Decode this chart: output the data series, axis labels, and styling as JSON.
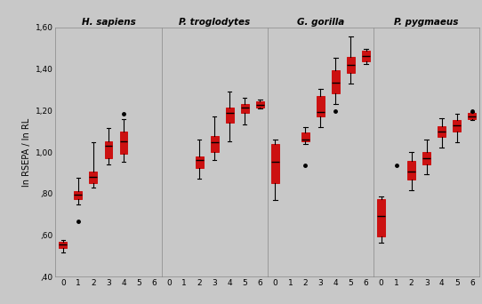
{
  "title_fontsize": 7.5,
  "ylabel": "ln RSEPA / ln RL",
  "ylabel_fontsize": 7,
  "bg_color": "#c8c8c8",
  "fig_bg_color": "#c8c8c8",
  "box_color": "#cc1111",
  "whisker_color": "#000000",
  "median_color": "#000000",
  "ylim": [
    0.4,
    1.6
  ],
  "yticks": [
    0.4,
    0.6,
    0.8,
    1.0,
    1.2,
    1.4,
    1.6
  ],
  "ytick_labels": [
    ",40",
    ",60",
    ",80",
    "1,00",
    "1,20",
    "1,40",
    "1,60"
  ],
  "species": [
    "H. sapiens",
    "P. troglodytes",
    "G. gorilla",
    "P. pygmaeus"
  ],
  "panels": {
    "H. sapiens": {
      "boxes": {
        "0": {
          "q1": 0.538,
          "median": 0.555,
          "q3": 0.568,
          "whislo": 0.515,
          "whishi": 0.578
        },
        "1": {
          "q1": 0.772,
          "median": 0.793,
          "q3": 0.812,
          "whislo": 0.748,
          "whishi": 0.875
        },
        "2": {
          "q1": 0.852,
          "median": 0.882,
          "q3": 0.905,
          "whislo": 0.828,
          "whishi": 1.048
        },
        "3": {
          "q1": 0.972,
          "median": 1.028,
          "q3": 1.052,
          "whislo": 0.942,
          "whishi": 1.115
        },
        "4": {
          "q1": 0.992,
          "median": 1.052,
          "q3": 1.098,
          "whislo": 0.952,
          "whishi": 1.158
        }
      },
      "outliers": {
        "1": [
          0.665
        ],
        "4": [
          1.182
        ]
      }
    },
    "P. troglodytes": {
      "boxes": {
        "2": {
          "q1": 0.922,
          "median": 0.962,
          "q3": 0.978,
          "whislo": 0.872,
          "whishi": 1.062
        },
        "3": {
          "q1": 0.998,
          "median": 1.048,
          "q3": 1.078,
          "whislo": 0.962,
          "whishi": 1.172
        },
        "4": {
          "q1": 1.142,
          "median": 1.188,
          "q3": 1.212,
          "whislo": 1.052,
          "whishi": 1.292
        },
        "5": {
          "q1": 1.188,
          "median": 1.212,
          "q3": 1.232,
          "whislo": 1.132,
          "whishi": 1.262
        },
        "6": {
          "q1": 1.212,
          "median": 1.228,
          "q3": 1.242,
          "whislo": 1.208,
          "whishi": 1.252
        }
      },
      "outliers": {}
    },
    "G. gorilla": {
      "boxes": {
        "0": {
          "q1": 0.852,
          "median": 0.952,
          "q3": 1.038,
          "whislo": 0.768,
          "whishi": 1.062
        },
        "2": {
          "q1": 1.052,
          "median": 1.062,
          "q3": 1.092,
          "whislo": 1.038,
          "whishi": 1.118
        },
        "3": {
          "q1": 1.172,
          "median": 1.192,
          "q3": 1.268,
          "whislo": 1.118,
          "whishi": 1.302
        },
        "4": {
          "q1": 1.282,
          "median": 1.332,
          "q3": 1.392,
          "whislo": 1.232,
          "whishi": 1.452
        },
        "5": {
          "q1": 1.382,
          "median": 1.418,
          "q3": 1.458,
          "whislo": 1.328,
          "whishi": 1.558
        },
        "6": {
          "q1": 1.438,
          "median": 1.462,
          "q3": 1.488,
          "whislo": 1.422,
          "whishi": 1.498
        }
      },
      "outliers": {
        "2": [
          0.935
        ],
        "4": [
          1.198
        ]
      }
    },
    "P. pygmaeus": {
      "boxes": {
        "0": {
          "q1": 0.592,
          "median": 0.692,
          "q3": 0.772,
          "whislo": 0.562,
          "whishi": 0.788
        },
        "2": {
          "q1": 0.868,
          "median": 0.908,
          "q3": 0.958,
          "whislo": 0.818,
          "whishi": 0.998
        },
        "3": {
          "q1": 0.942,
          "median": 0.972,
          "q3": 1.002,
          "whislo": 0.892,
          "whishi": 1.062
        },
        "4": {
          "q1": 1.072,
          "median": 1.098,
          "q3": 1.122,
          "whislo": 1.022,
          "whishi": 1.162
        },
        "5": {
          "q1": 1.098,
          "median": 1.128,
          "q3": 1.152,
          "whislo": 1.048,
          "whishi": 1.182
        },
        "6": {
          "q1": 1.158,
          "median": 1.172,
          "q3": 1.188,
          "whislo": 1.152,
          "whishi": 1.192
        }
      },
      "outliers": {
        "1": [
          0.935
        ],
        "6": [
          1.195
        ]
      }
    }
  }
}
